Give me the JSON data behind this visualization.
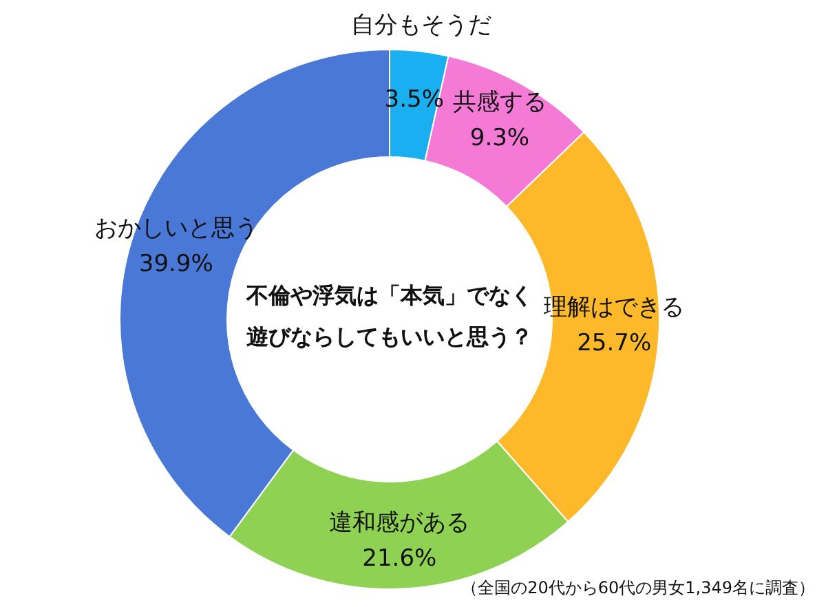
{
  "chart_data": {
    "type": "donut",
    "title": "不倫や浮気は「本気」でなく遊びならしてもいいと思う？",
    "categories": [
      "自分もそうだ",
      "共感する",
      "理解はできる",
      "違和感がある",
      "おかしいと思う"
    ],
    "values": [
      3.5,
      9.3,
      25.7,
      21.6,
      39.9
    ],
    "colors": [
      "#1aaff0",
      "#f47ad6",
      "#fdb92a",
      "#8fd152",
      "#4a78d6"
    ],
    "value_labels": [
      "3.5%",
      "9.3%",
      "25.7%",
      "21.6%",
      "39.9%"
    ],
    "annotations": [
      "（全国の20代から60代の男女1,349名に調査）"
    ]
  }
}
